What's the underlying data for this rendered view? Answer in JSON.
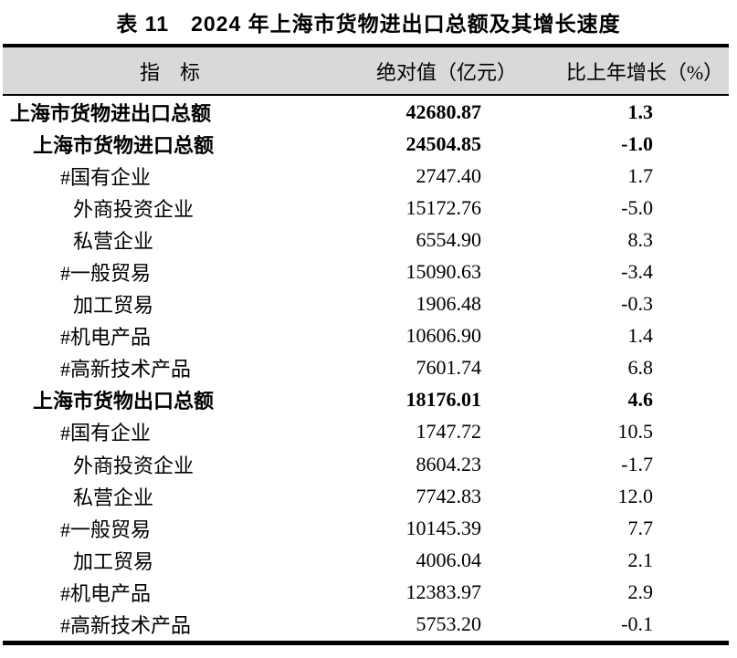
{
  "title": "表 11　2024 年上海市货物进出口总额及其增长速度",
  "colors": {
    "header_bg": "#d9d9d9",
    "border": "#000000",
    "text": "#000000",
    "background": "#ffffff"
  },
  "table": {
    "columns": [
      "指　标",
      "绝对值（亿元）",
      "比上年增长（%）"
    ],
    "rows": [
      {
        "label": "上海市货物进出口总额",
        "value": "42680.87",
        "growth": "1.3",
        "indent": 0,
        "bold": true
      },
      {
        "label": "上海市货物进口总额",
        "value": "24504.85",
        "growth": "-1.0",
        "indent": 1,
        "bold": true
      },
      {
        "label": "#国有企业",
        "value": "2747.40",
        "growth": "1.7",
        "indent": 2,
        "bold": false
      },
      {
        "label": "外商投资企业",
        "value": "15172.76",
        "growth": "-5.0",
        "indent": 3,
        "bold": false
      },
      {
        "label": "私营企业",
        "value": "6554.90",
        "growth": "8.3",
        "indent": 3,
        "bold": false
      },
      {
        "label": "#一般贸易",
        "value": "15090.63",
        "growth": "-3.4",
        "indent": 2,
        "bold": false
      },
      {
        "label": "加工贸易",
        "value": "1906.48",
        "growth": "-0.3",
        "indent": 3,
        "bold": false
      },
      {
        "label": "#机电产品",
        "value": "10606.90",
        "growth": "1.4",
        "indent": 2,
        "bold": false
      },
      {
        "label": "#高新技术产品",
        "value": "7601.74",
        "growth": "6.8",
        "indent": 2,
        "bold": false
      },
      {
        "label": "上海市货物出口总额",
        "value": "18176.01",
        "growth": "4.6",
        "indent": 1,
        "bold": true
      },
      {
        "label": "#国有企业",
        "value": "1747.72",
        "growth": "10.5",
        "indent": 2,
        "bold": false
      },
      {
        "label": "外商投资企业",
        "value": "8604.23",
        "growth": "-1.7",
        "indent": 3,
        "bold": false
      },
      {
        "label": "私营企业",
        "value": "7742.83",
        "growth": "12.0",
        "indent": 3,
        "bold": false
      },
      {
        "label": "#一般贸易",
        "value": "10145.39",
        "growth": "7.7",
        "indent": 2,
        "bold": false
      },
      {
        "label": "加工贸易",
        "value": "4006.04",
        "growth": "2.1",
        "indent": 3,
        "bold": false
      },
      {
        "label": "#机电产品",
        "value": "12383.97",
        "growth": "2.9",
        "indent": 2,
        "bold": false
      },
      {
        "label": "#高新技术产品",
        "value": "5753.20",
        "growth": "-0.1",
        "indent": 2,
        "bold": false
      }
    ]
  }
}
